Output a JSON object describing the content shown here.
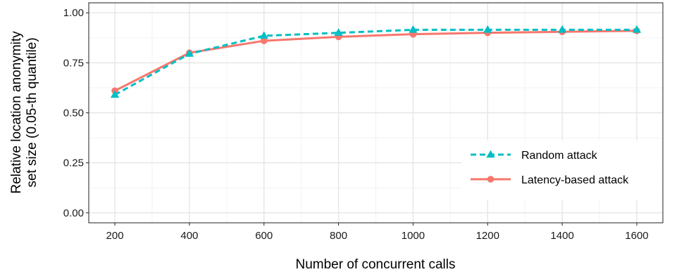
{
  "chart_data": {
    "type": "line",
    "title": "",
    "xlabel": "Number of concurrent calls",
    "ylabel_lines": [
      "Relative location anonymity",
      "set size (0.05-th quantile)"
    ],
    "x": [
      200,
      400,
      600,
      800,
      1000,
      1200,
      1400,
      1600
    ],
    "x_ticks": [
      "200",
      "400",
      "600",
      "800",
      "1000",
      "1200",
      "1400",
      "1600"
    ],
    "y_ticks": [
      "0.00",
      "0.25",
      "0.50",
      "0.75",
      "1.00"
    ],
    "xlim": [
      130,
      1670
    ],
    "ylim": [
      -0.05,
      1.05
    ],
    "grid": true,
    "legend_position": "bottom-right",
    "series": [
      {
        "name": "Random attack",
        "values": [
          0.59,
          0.795,
          0.885,
          0.9,
          0.915,
          0.915,
          0.915,
          0.915
        ],
        "color": "#00BFC4",
        "line_style": "dashed",
        "marker": "triangle"
      },
      {
        "name": "Latency-based attack",
        "values": [
          0.61,
          0.8,
          0.86,
          0.88,
          0.893,
          0.9,
          0.905,
          0.91
        ],
        "color": "#F8766D",
        "line_style": "solid",
        "marker": "circle"
      }
    ]
  }
}
